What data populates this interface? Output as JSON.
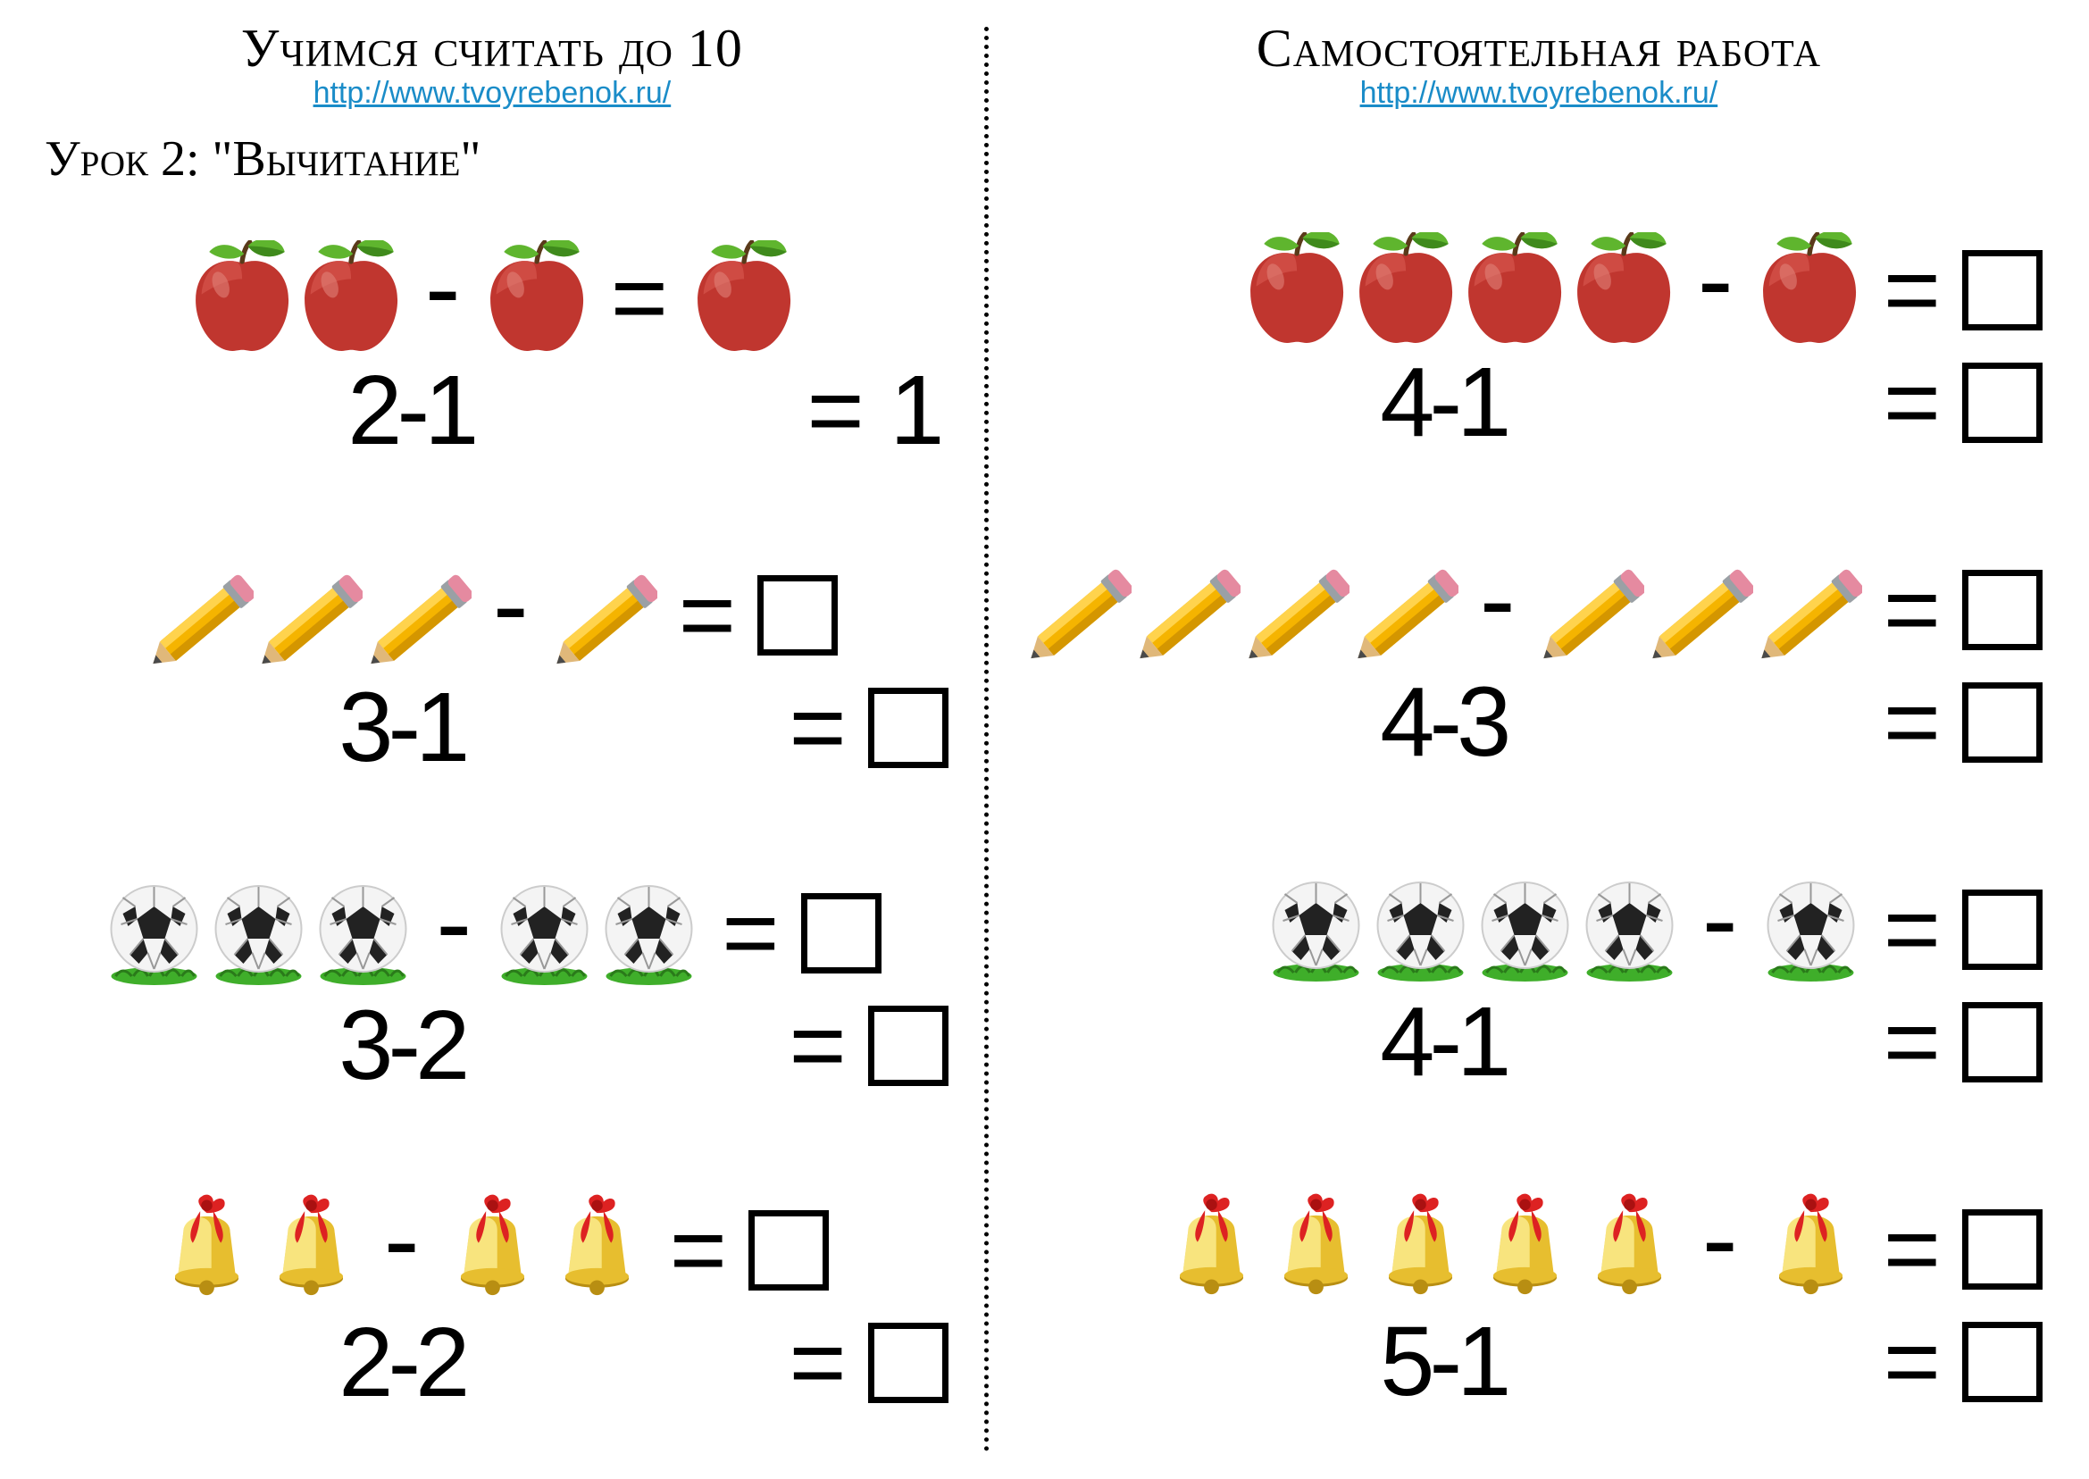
{
  "left": {
    "title": "Учимся считать до 10",
    "url": "http://www.tvoyrebenok.ru/",
    "lesson": "Урок 2: \"Вычитание\"",
    "problems": [
      {
        "icon": "apple",
        "a": 2,
        "b": 1,
        "eq": "2-1",
        "answer": "1",
        "show_answer": true
      },
      {
        "icon": "pencil",
        "a": 3,
        "b": 1,
        "eq": "3-1",
        "answer": "",
        "show_answer": false
      },
      {
        "icon": "ball",
        "a": 3,
        "b": 2,
        "eq": "3-2",
        "answer": "",
        "show_answer": false
      },
      {
        "icon": "bell",
        "a": 2,
        "b": 2,
        "eq": "2-2",
        "answer": "",
        "show_answer": false
      }
    ]
  },
  "right": {
    "title": "Самостоятельная работа",
    "url": "http://www.tvoyrebenok.ru/",
    "problems": [
      {
        "icon": "apple",
        "a": 4,
        "b": 1,
        "eq": "4-1",
        "answer": "",
        "show_answer": false
      },
      {
        "icon": "pencil",
        "a": 4,
        "b": 3,
        "eq": "4-3",
        "answer": "",
        "show_answer": false
      },
      {
        "icon": "ball",
        "a": 4,
        "b": 1,
        "eq": "4-1",
        "answer": "",
        "show_answer": false
      },
      {
        "icon": "bell",
        "a": 5,
        "b": 1,
        "eq": "5-1",
        "answer": "",
        "show_answer": false
      }
    ]
  },
  "icons": {
    "apple": {
      "w": 120,
      "h": 130
    },
    "pencil": {
      "w": 120,
      "h": 130
    },
    "ball": {
      "w": 115,
      "h": 120
    },
    "bell": {
      "w": 115,
      "h": 130
    }
  },
  "colors": {
    "apple_body": "#c0362f",
    "apple_hi": "#d85a52",
    "leaf": "#5fb52e",
    "leaf_dk": "#3f8a1c",
    "pencil_body": "#f5b400",
    "pencil_hi": "#ffd34d",
    "pencil_tip": "#e0b87a",
    "pencil_lead": "#4a4a4a",
    "eraser": "#e58aa0",
    "ferrule": "#9aa0a5",
    "ball_white": "#f4f4f4",
    "ball_black": "#222",
    "grass": "#3fae2a",
    "bell_gold": "#e7be2f",
    "bell_hi": "#fff3a0",
    "bell_dk": "#b88e12",
    "ribbon": "#d22"
  }
}
